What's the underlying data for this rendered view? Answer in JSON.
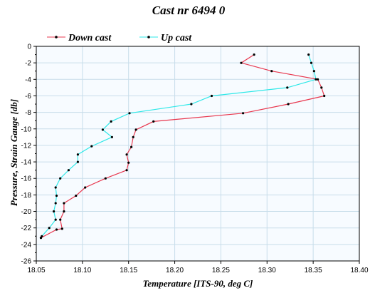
{
  "chart_data": {
    "type": "line",
    "title": "Cast nr 6494 0",
    "xlabel": "Temperature [ITS-90, deg C]",
    "ylabel": "Pressure, Strain Gauge [db]",
    "xlim": [
      18.05,
      18.4
    ],
    "ylim": [
      -26,
      0
    ],
    "x_ticks": [
      "18.05",
      "18.10",
      "18.15",
      "18.20",
      "18.25",
      "18.30",
      "18.35",
      "18.40"
    ],
    "y_ticks": [
      "0",
      "-2",
      "-4",
      "-6",
      "-8",
      "-10",
      "-12",
      "-14",
      "-16",
      "-18",
      "-20",
      "-22",
      "-24",
      "-26"
    ],
    "grid": true,
    "legend_position": "top-left",
    "series": [
      {
        "name": "Down cast",
        "color": "#e8384f",
        "points": [
          [
            18.286,
            -1.0
          ],
          [
            18.272,
            -2.0
          ],
          [
            18.305,
            -3.0
          ],
          [
            18.355,
            -4.0
          ],
          [
            18.359,
            -5.0
          ],
          [
            18.362,
            -6.0
          ],
          [
            18.323,
            -7.0
          ],
          [
            18.274,
            -8.1
          ],
          [
            18.177,
            -9.1
          ],
          [
            18.158,
            -10.1
          ],
          [
            18.155,
            -11.0
          ],
          [
            18.153,
            -12.2
          ],
          [
            18.148,
            -13.1
          ],
          [
            18.15,
            -14.1
          ],
          [
            18.148,
            -15.0
          ],
          [
            18.125,
            -16.0
          ],
          [
            18.103,
            -17.1
          ],
          [
            18.093,
            -18.1
          ],
          [
            18.08,
            -19.0
          ],
          [
            18.08,
            -20.0
          ],
          [
            18.076,
            -21.0
          ],
          [
            18.078,
            -22.1
          ],
          [
            18.072,
            -22.2
          ],
          [
            18.055,
            -23.2
          ]
        ]
      },
      {
        "name": "Up cast",
        "color": "#2ee8e8",
        "points": [
          [
            18.345,
            -1.0
          ],
          [
            18.348,
            -2.0
          ],
          [
            18.351,
            -3.0
          ],
          [
            18.353,
            -4.0
          ],
          [
            18.322,
            -5.0
          ],
          [
            18.24,
            -6.0
          ],
          [
            18.218,
            -7.0
          ],
          [
            18.151,
            -8.1
          ],
          [
            18.131,
            -9.1
          ],
          [
            18.122,
            -10.1
          ],
          [
            18.132,
            -11.0
          ],
          [
            18.11,
            -12.1
          ],
          [
            18.095,
            -13.1
          ],
          [
            18.095,
            -14.0
          ],
          [
            18.085,
            -15.0
          ],
          [
            18.076,
            -16.0
          ],
          [
            18.071,
            -17.1
          ],
          [
            18.072,
            -18.1
          ],
          [
            18.071,
            -19.0
          ],
          [
            18.069,
            -20.0
          ],
          [
            18.071,
            -21.0
          ],
          [
            18.064,
            -22.0
          ],
          [
            18.056,
            -23.0
          ],
          [
            18.055,
            -23.2
          ]
        ]
      }
    ]
  }
}
